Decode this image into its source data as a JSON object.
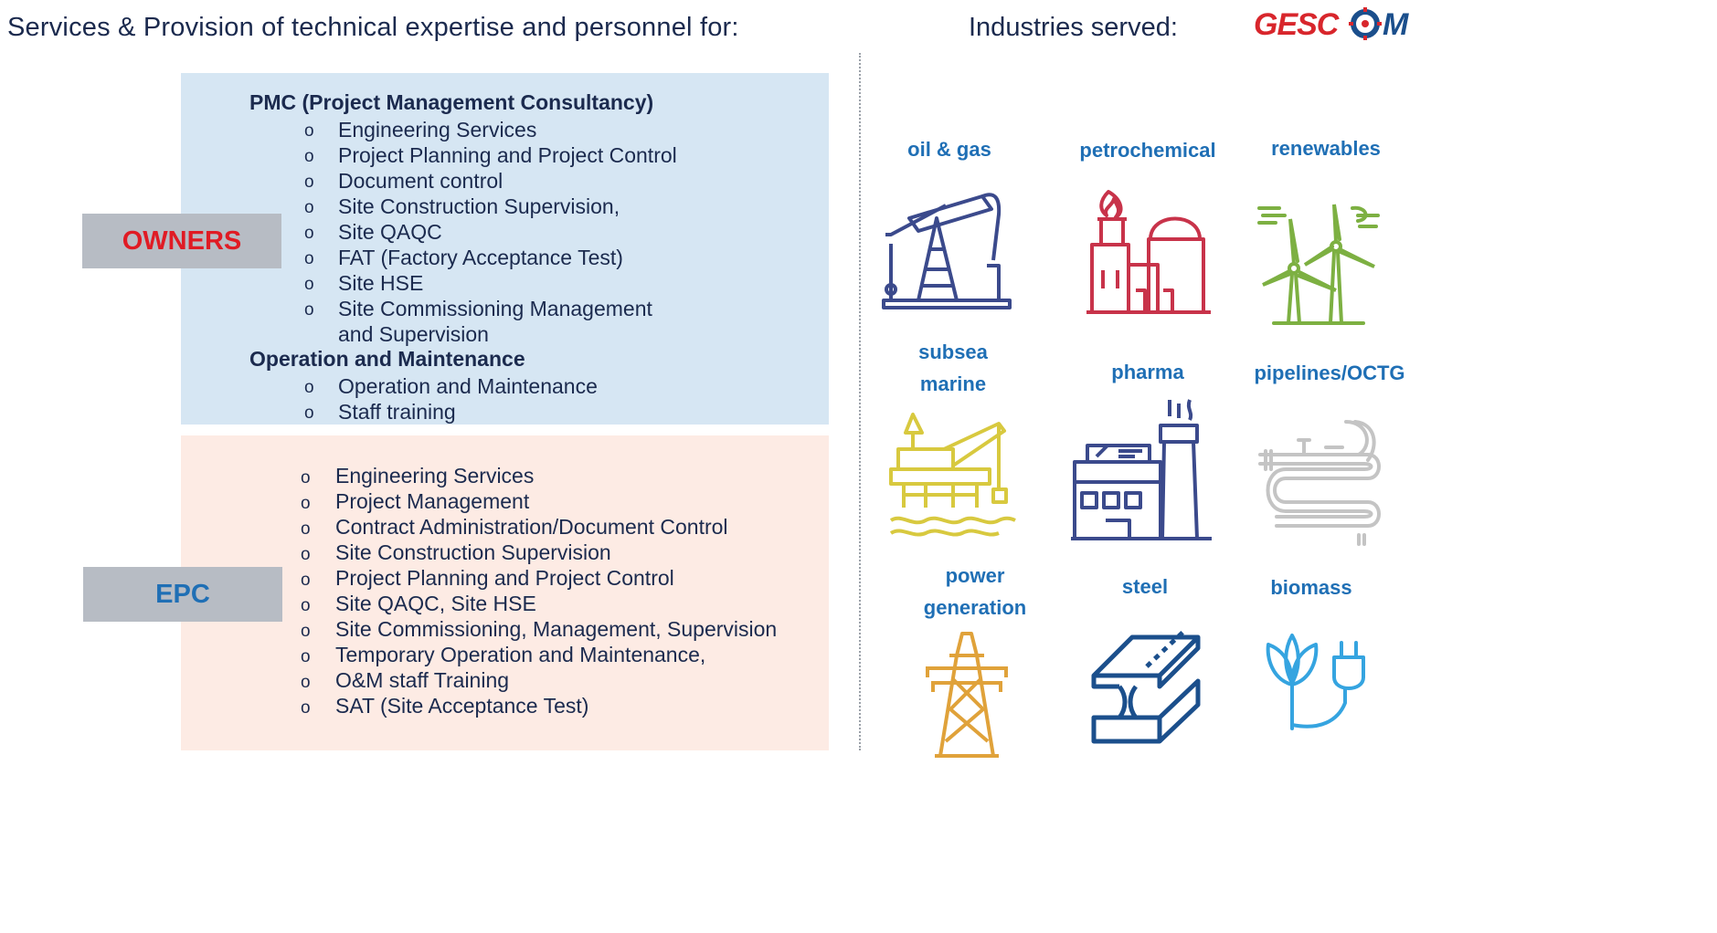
{
  "header": {
    "services_title": "Services & Provision of technical expertise and personnel  for:",
    "industries_title": "Industries served:",
    "logo_text": "GESCOM"
  },
  "owners": {
    "tag": "OWNERS",
    "pmc_heading": "PMC (Project Management Consultancy)",
    "pmc_items": [
      "Engineering Services",
      "Project Planning and Project Control",
      "Document control",
      "Site Construction Supervision,",
      "Site QAQC",
      "FAT (Factory Acceptance Test)",
      "Site HSE",
      "Site Commissioning Management",
      "and Supervision"
    ],
    "om_heading": "Operation and Maintenance",
    "om_items": [
      "Operation and Maintenance",
      "Staff training"
    ]
  },
  "epc": {
    "tag": "EPC",
    "items": [
      "Engineering Services",
      "Project Management",
      "Contract Administration/Document Control",
      "Site Construction Supervision",
      "Project Planning and Project Control",
      "Site QAQC, Site HSE",
      "Site Commissioning, Management, Supervision",
      "Temporary Operation and Maintenance,",
      "O&M staff Training",
      "SAT (Site Acceptance Test)"
    ]
  },
  "bullet_glyph": "o",
  "industries": [
    {
      "line1": "oil & gas",
      "line2": "",
      "icon": "oil-pump-icon",
      "color": "#3b4a8c"
    },
    {
      "line1": "petrochemical",
      "line2": "",
      "icon": "petrochemical-plant-icon",
      "color": "#c8334a"
    },
    {
      "line1": "renewables",
      "line2": "",
      "icon": "wind-turbines-icon",
      "color": "#7db042"
    },
    {
      "line1": "subsea",
      "line2": "marine",
      "icon": "offshore-platform-icon",
      "color": "#d8c93f"
    },
    {
      "line1": "pharma",
      "line2": "",
      "icon": "pharma-factory-icon",
      "color": "#3b4a8c"
    },
    {
      "line1": "pipelines/OCTG",
      "line2": "",
      "icon": "pipelines-icon",
      "color": "#c4c4c4"
    },
    {
      "line1": "power",
      "line2": "generation",
      "icon": "power-pylon-icon",
      "color": "#e0a23a"
    },
    {
      "line1": "steel",
      "line2": "",
      "icon": "steel-beam-icon",
      "color": "#1b4f8c"
    },
    {
      "line1": "biomass",
      "line2": "",
      "icon": "biomass-plug-icon",
      "color": "#35a4e0"
    }
  ]
}
